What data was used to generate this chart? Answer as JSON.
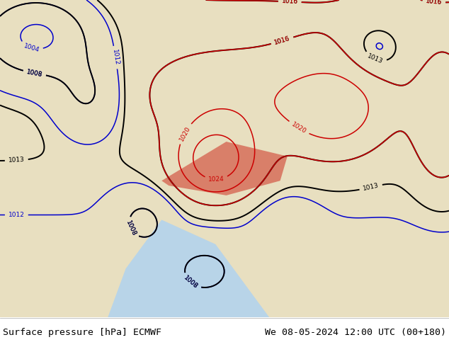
{
  "title_left": "Surface pressure [hPa] ECMWF",
  "title_right": "We 08-05-2024 12:00 UTC (00+180)",
  "title_fontsize": 9.5,
  "title_color": "#000000",
  "background_color": "#ffffff",
  "fig_width": 6.34,
  "fig_height": 4.9,
  "dpi": 100,
  "lon_min": 25,
  "lon_max": 150,
  "lat_min": 0,
  "lat_max": 65,
  "color_black": "#000000",
  "color_blue": "#0000cc",
  "color_red": "#cc0000",
  "color_land_green": "#c8d8b0",
  "color_land_tan": "#e8dfc0",
  "color_land_beige": "#d4c8a0",
  "color_sea": "#b8d4e8",
  "color_sea2": "#c8e0f0",
  "color_highlight_red": "#d04030",
  "lw_contour": 1.1,
  "lw_contour_bold": 1.4,
  "label_fontsize": 6.5,
  "pressure_centers": {
    "highs": [
      {
        "lon": 85,
        "lat": 32,
        "mag": 14,
        "spread_lon": 12,
        "spread_lat": 8
      },
      {
        "lon": 118,
        "lat": 42,
        "mag": 8,
        "spread_lon": 15,
        "spread_lat": 10
      },
      {
        "lon": 148,
        "lat": 38,
        "mag": 6,
        "spread_lon": 8,
        "spread_lat": 12
      }
    ],
    "lows": [
      {
        "lon": 35,
        "lat": 58,
        "mag": 12,
        "spread_lon": 18,
        "spread_lat": 10
      },
      {
        "lon": 50,
        "lat": 45,
        "mag": 6,
        "spread_lon": 10,
        "spread_lat": 8
      },
      {
        "lon": 65,
        "lat": 20,
        "mag": 5,
        "spread_lon": 8,
        "spread_lat": 6
      },
      {
        "lon": 82,
        "lat": 10,
        "mag": 4,
        "spread_lon": 10,
        "spread_lat": 6
      },
      {
        "lon": 105,
        "lat": 18,
        "mag": 3,
        "spread_lon": 8,
        "spread_lat": 6
      },
      {
        "lon": 130,
        "lat": 55,
        "mag": 4,
        "spread_lon": 8,
        "spread_lat": 6
      }
    ]
  }
}
